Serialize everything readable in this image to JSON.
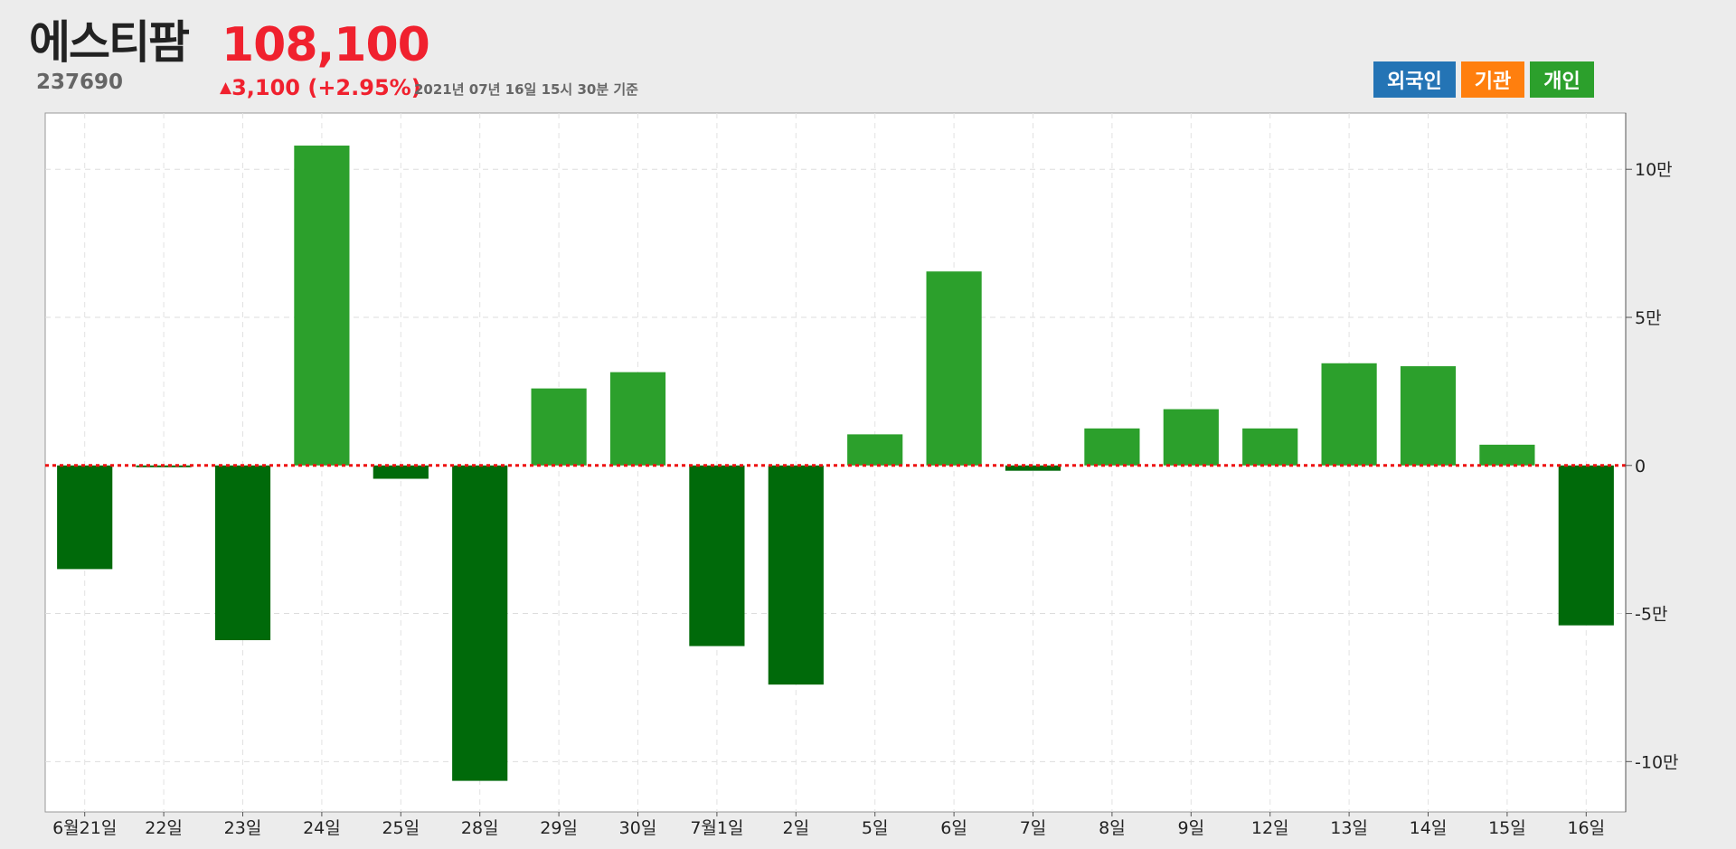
{
  "header": {
    "name": "에스티팜",
    "code": "237690",
    "price": "108,100",
    "change_arrow": "▲",
    "change": "3,100 (+2.95%)",
    "asof": "2021년 07년 16일 15시 30분 기준"
  },
  "buttons": [
    {
      "label": "외국인",
      "color": "#2474b5"
    },
    {
      "label": "기관",
      "color": "#ff7f0e"
    },
    {
      "label": "개인",
      "color": "#2ca02c"
    }
  ],
  "chart_data": {
    "type": "bar",
    "categories": [
      "6월21일",
      "22일",
      "23일",
      "24일",
      "25일",
      "28일",
      "29일",
      "30일",
      "7월1일",
      "2일",
      "5일",
      "6일",
      "7일",
      "8일",
      "9일",
      "12일",
      "13일",
      "14일",
      "15일",
      "16일"
    ],
    "values": [
      -35000,
      -400,
      -59000,
      108000,
      -4500,
      -106500,
      26000,
      31500,
      -61000,
      -74000,
      10500,
      65500,
      -1800,
      12500,
      19000,
      12500,
      34500,
      33500,
      7000,
      -54000
    ],
    "ylim": [
      -117000,
      119000
    ],
    "yticks": [
      100000,
      50000,
      0,
      -50000,
      -100000
    ],
    "ytick_labels": [
      "10만",
      "5만",
      "0",
      "-5만",
      "-10만"
    ],
    "positive_color": "#2ca02c",
    "negative_color": "#006a0a",
    "zero_line_color": "#ee1111",
    "grid": true
  }
}
